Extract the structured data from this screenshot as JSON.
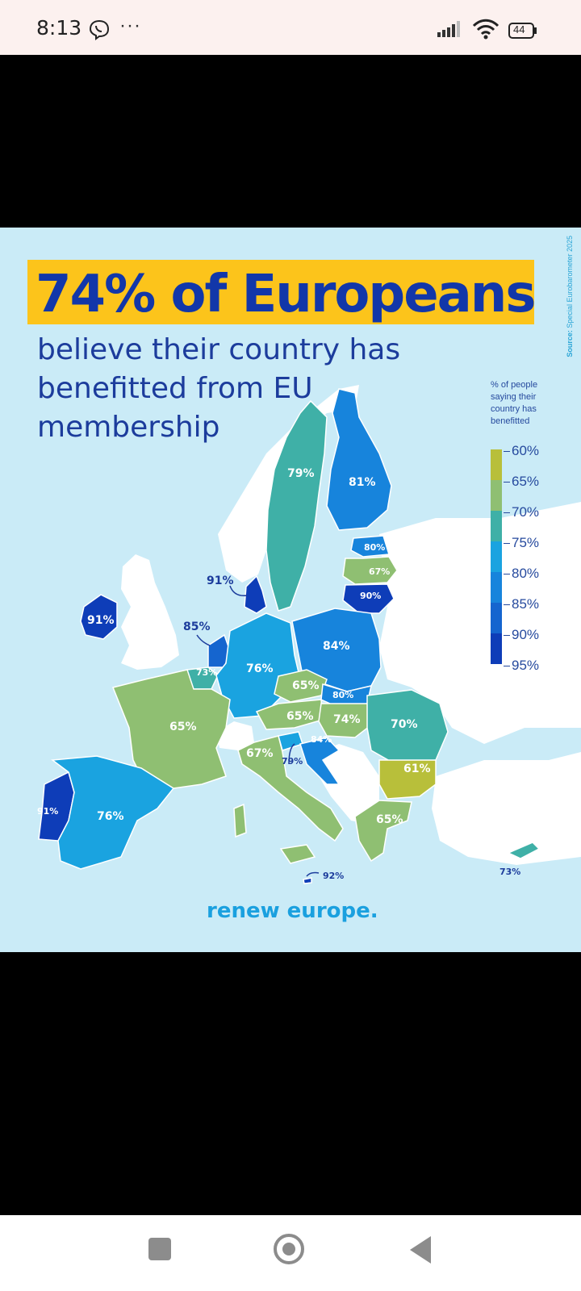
{
  "status_bar": {
    "time": "8:13",
    "dots": "···",
    "battery": "44"
  },
  "poster": {
    "title": "74% of Europeans",
    "subtitle": "believe their country has benefitted from EU membership",
    "source_label": "Source:",
    "source_text": "Special Eurobarometer 2025",
    "legend_title": "% of people saying their country has benefitted",
    "legend_ticks": [
      "60%",
      "65%",
      "70%",
      "75%",
      "80%",
      "85%",
      "90%",
      "95%"
    ],
    "legend_colors": [
      "#b8bf3a",
      "#8fbf72",
      "#3fb0a7",
      "#1aa3e0",
      "#1784dc",
      "#1565cf",
      "#0e3db8"
    ],
    "logo": "renew europe.",
    "country_values": {
      "sweden": "79%",
      "finland": "81%",
      "estonia": "80%",
      "latvia": "67%",
      "lithuania": "90%",
      "denmark": "91%",
      "ireland": "91%",
      "netherlands": "85%",
      "belgium": "73%",
      "germany": "76%",
      "poland": "84%",
      "czechia": "65%",
      "slovakia": "80%",
      "austria": "65%",
      "hungary": "74%",
      "romania": "70%",
      "france": "65%",
      "italy": "67%",
      "slovenia": "79%",
      "croatia": "84%",
      "bulgaria": "61%",
      "portugal": "91%",
      "spain": "76%",
      "greece": "65%",
      "malta": "92%",
      "cyprus": "73%"
    }
  }
}
